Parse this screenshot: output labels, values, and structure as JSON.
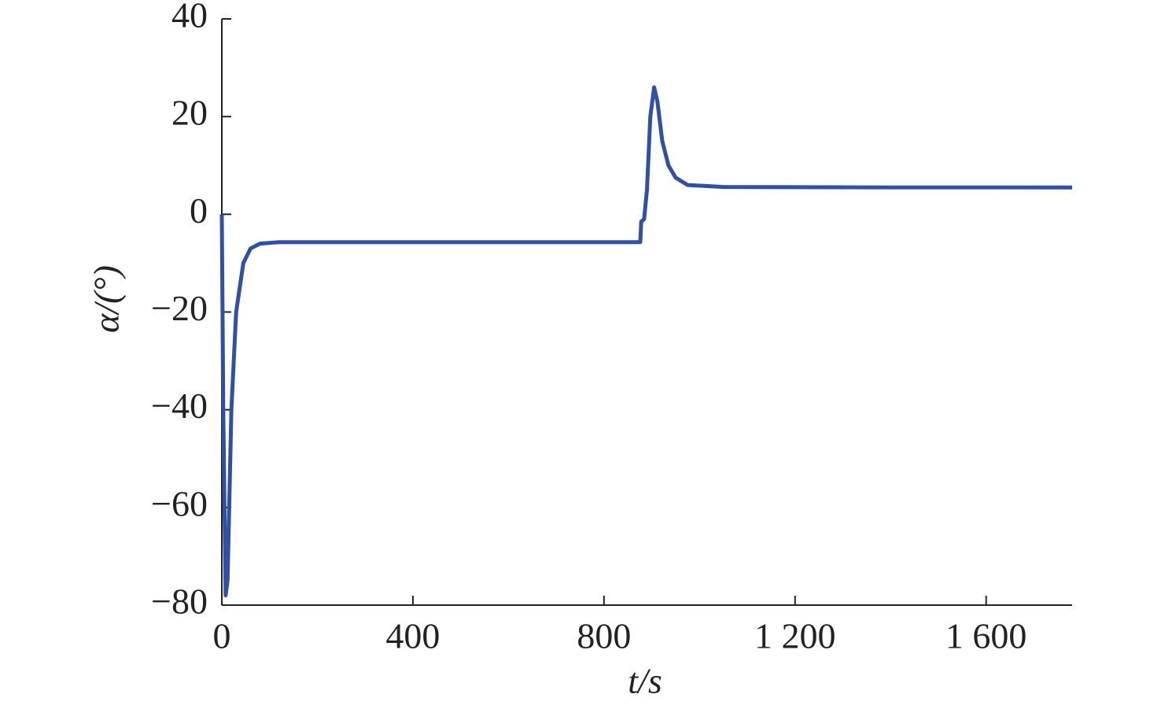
{
  "chart_data": {
    "type": "line",
    "xlabel": "t/s",
    "ylabel": "α/(°)",
    "x": [
      0,
      3,
      8,
      12,
      20,
      30,
      45,
      60,
      80,
      120,
      500,
      876,
      878,
      884,
      890,
      897,
      905,
      912,
      922,
      935,
      950,
      975,
      1050,
      1400,
      1780
    ],
    "series": [
      {
        "name": "α",
        "color": "#3050a8",
        "values": [
          0,
          -40,
          -78,
          -75,
          -40,
          -20,
          -10,
          -7,
          -6,
          -5.7,
          -5.7,
          -5.7,
          -1.5,
          -1,
          5,
          20,
          26,
          23,
          15,
          10,
          7.5,
          6,
          5.6,
          5.5,
          5.5
        ]
      }
    ],
    "xlim": [
      0,
      1780
    ],
    "ylim": [
      -80,
      40
    ],
    "xticks": [
      0,
      400,
      800,
      {
        "value": 1200,
        "label": "1 200"
      },
      {
        "value": 1600,
        "label": "1 600"
      }
    ],
    "yticks": [
      {
        "value": -80,
        "label": "−80"
      },
      {
        "value": -60,
        "label": "−60"
      },
      {
        "value": -40,
        "label": "−40"
      },
      {
        "value": -20,
        "label": "−20"
      },
      0,
      20,
      40
    ],
    "grid": false
  }
}
